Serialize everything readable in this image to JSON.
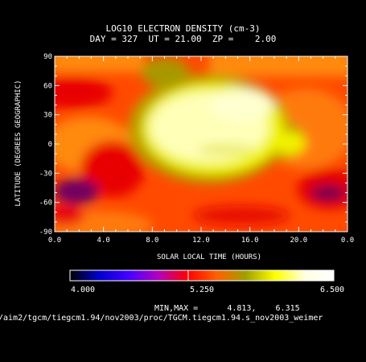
{
  "chart_data": {
    "type": "heatmap",
    "title": "LOG10 ELECTRON DENSITY (cm-3)",
    "subtitle": "DAY = 327  UT = 21.00  ZP =    2.00",
    "xlabel": "SOLAR LOCAL TIME (HOURS)",
    "ylabel": "LATITUDE (DEGREES GEOGRAPHIC)",
    "x_ticks": [
      "0.0",
      "4.0",
      "8.0",
      "12.0",
      "16.0",
      "20.0",
      "0.0"
    ],
    "y_ticks": [
      "90",
      "60",
      "30",
      "0",
      "-30",
      "-60",
      "-90"
    ],
    "xlim": [
      0,
      24
    ],
    "ylim": [
      -90,
      90
    ],
    "colorbar": {
      "min_label": "4.000",
      "mid_label": "5.250",
      "max_label": "6.500",
      "colors": [
        "#000000",
        "#0000cc",
        "#4400ff",
        "#b000c0",
        "#ff0000",
        "#ff6000",
        "#a0a000",
        "#ffff00",
        "#ffffe0",
        "#ffffff"
      ]
    },
    "minmax_label": "MIN,MAX =",
    "min_value": "4.813,",
    "max_value": "6.315",
    "source_path": "/aim2/tgcm/tiegcm1.94/nov2003/proc/TGCM.tiegcm1.94.s_nov2003_weimer"
  }
}
